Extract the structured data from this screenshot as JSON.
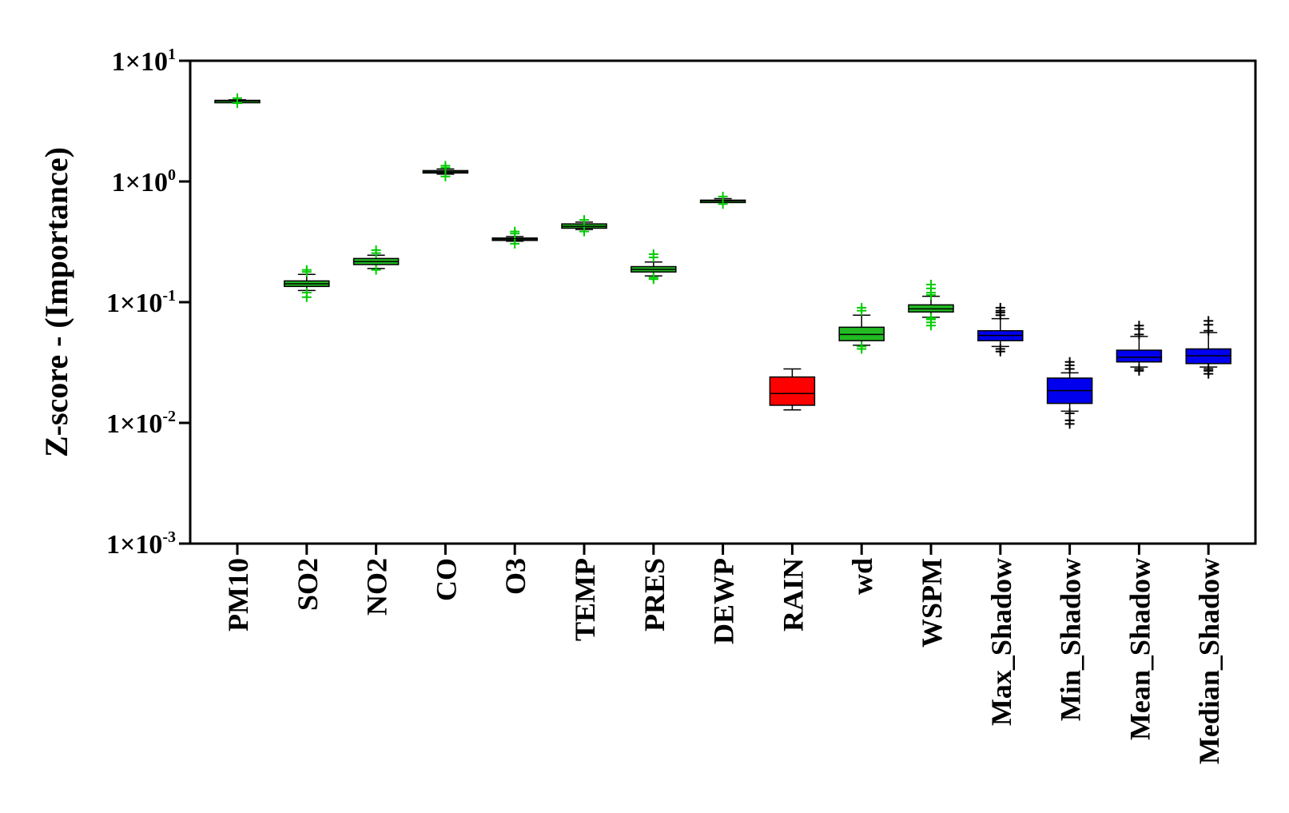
{
  "chart_data": {
    "type": "box",
    "title": "",
    "xlabel": "",
    "ylabel": "Z-score - (Importance)",
    "yscale": "log",
    "ylim": [
      0.001,
      10
    ],
    "yticks": [
      {
        "value": 10,
        "base": "1×10",
        "exp": "1"
      },
      {
        "value": 1,
        "base": "1×10",
        "exp": "0"
      },
      {
        "value": 0.1,
        "base": "1×10",
        "exp": "-1"
      },
      {
        "value": 0.01,
        "base": "1×10",
        "exp": "-2"
      },
      {
        "value": 0.001,
        "base": "1×10",
        "exp": "-3"
      }
    ],
    "grid": false,
    "legend": "none",
    "colors": {
      "confirmed": "#22bb22",
      "rejected": "#ff0000",
      "shadow": "#0000ee",
      "outlier_confirmed": "#00cc00",
      "outlier_other": "#000000"
    },
    "boxes": [
      {
        "category": "PM10",
        "group": "confirmed",
        "whisker_low": 4.55,
        "q1": 4.6,
        "median": 4.65,
        "q3": 4.7,
        "whisker_high": 4.75,
        "outliers": [
          4.9,
          4.45
        ]
      },
      {
        "category": "SO2",
        "group": "confirmed",
        "whisker_low": 0.125,
        "q1": 0.135,
        "median": 0.142,
        "q3": 0.15,
        "whisker_high": 0.17,
        "outliers": [
          0.185,
          0.178,
          0.12,
          0.11
        ]
      },
      {
        "category": "NO2",
        "group": "confirmed",
        "whisker_low": 0.19,
        "q1": 0.205,
        "median": 0.217,
        "q3": 0.23,
        "whisker_high": 0.245,
        "outliers": [
          0.27,
          0.255,
          0.185
        ]
      },
      {
        "category": "CO",
        "group": "confirmed",
        "whisker_low": 1.15,
        "q1": 1.18,
        "median": 1.2,
        "q3": 1.23,
        "whisker_high": 1.27,
        "outliers": [
          1.35,
          1.3,
          1.1
        ]
      },
      {
        "category": "O3",
        "group": "confirmed",
        "whisker_low": 0.32,
        "q1": 0.325,
        "median": 0.333,
        "q3": 0.34,
        "whisker_high": 0.35,
        "outliers": [
          0.385,
          0.37,
          0.305
        ]
      },
      {
        "category": "TEMP",
        "group": "confirmed",
        "whisker_low": 0.4,
        "q1": 0.41,
        "median": 0.425,
        "q3": 0.445,
        "whisker_high": 0.46,
        "outliers": [
          0.48,
          0.385
        ]
      },
      {
        "category": "PRES",
        "group": "confirmed",
        "whisker_low": 0.165,
        "q1": 0.178,
        "median": 0.187,
        "q3": 0.197,
        "whisker_high": 0.215,
        "outliers": [
          0.25,
          0.235,
          0.16,
          0.155
        ]
      },
      {
        "category": "DEWP",
        "group": "confirmed",
        "whisker_low": 0.67,
        "q1": 0.68,
        "median": 0.69,
        "q3": 0.7,
        "whisker_high": 0.72,
        "outliers": [
          0.75,
          0.65
        ]
      },
      {
        "category": "RAIN",
        "group": "rejected",
        "whisker_low": 0.0128,
        "q1": 0.014,
        "median": 0.0175,
        "q3": 0.024,
        "whisker_high": 0.028,
        "outliers": []
      },
      {
        "category": "wd",
        "group": "confirmed",
        "whisker_low": 0.044,
        "q1": 0.048,
        "median": 0.054,
        "q3": 0.062,
        "whisker_high": 0.078,
        "outliers": [
          0.09,
          0.085,
          0.043,
          0.041
        ]
      },
      {
        "category": "WSPM",
        "group": "confirmed",
        "whisker_low": 0.075,
        "q1": 0.083,
        "median": 0.088,
        "q3": 0.095,
        "whisker_high": 0.112,
        "outliers": [
          0.14,
          0.13,
          0.12,
          0.115,
          0.074,
          0.072,
          0.068,
          0.064
        ]
      },
      {
        "category": "Max_Shadow",
        "group": "shadow",
        "whisker_low": 0.043,
        "q1": 0.048,
        "median": 0.053,
        "q3": 0.058,
        "whisker_high": 0.073,
        "outliers": [
          0.09,
          0.085,
          0.082,
          0.078,
          0.041,
          0.039
        ]
      },
      {
        "category": "Min_Shadow",
        "group": "shadow",
        "whisker_low": 0.0125,
        "q1": 0.0145,
        "median": 0.0185,
        "q3": 0.0235,
        "whisker_high": 0.026,
        "outliers": [
          0.032,
          0.03,
          0.028,
          0.012,
          0.0105,
          0.0098
        ]
      },
      {
        "category": "Mean_Shadow",
        "group": "shadow",
        "whisker_low": 0.029,
        "q1": 0.032,
        "median": 0.035,
        "q3": 0.04,
        "whisker_high": 0.052,
        "outliers": [
          0.064,
          0.06,
          0.054,
          0.028,
          0.027
        ]
      },
      {
        "category": "Median_Shadow",
        "group": "shadow",
        "whisker_low": 0.029,
        "q1": 0.031,
        "median": 0.036,
        "q3": 0.041,
        "whisker_high": 0.056,
        "outliers": [
          0.07,
          0.065,
          0.058,
          0.028,
          0.027,
          0.0255
        ]
      }
    ]
  }
}
